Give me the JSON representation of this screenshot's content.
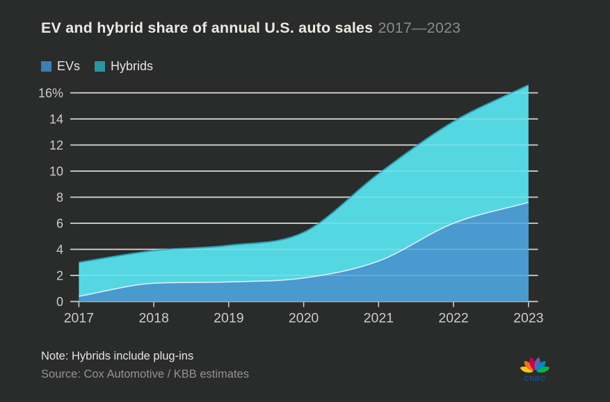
{
  "header": {
    "title": "EV and hybrid share of annual U.S. auto sales",
    "subtitle": "2017—2023"
  },
  "legend": [
    {
      "label": "EVs",
      "color": "#3b7fb4"
    },
    {
      "label": "Hybrids",
      "color": "#2b95a2"
    }
  ],
  "chart_data": {
    "type": "area",
    "stacked": true,
    "title": "EV and hybrid share of annual U.S. auto sales 2017—2023",
    "x": [
      2017,
      2018,
      2019,
      2020,
      2021,
      2022,
      2023
    ],
    "x_tick_labels": [
      "2017",
      "2018",
      "2019",
      "2020",
      "2021",
      "2022",
      "2023"
    ],
    "series": [
      {
        "name": "EVs",
        "values": [
          0.4,
          1.4,
          1.5,
          1.8,
          3.1,
          6.0,
          7.6
        ],
        "fill": "#4a99cf",
        "edge": "#ddeef8"
      },
      {
        "name": "Hybrids",
        "values": [
          2.6,
          2.5,
          2.8,
          3.5,
          6.7,
          7.8,
          9.0
        ],
        "fill": "#55d7e2",
        "edge": "#2d9fb6"
      }
    ],
    "stacked_totals": [
      3.0,
      3.9,
      4.3,
      5.3,
      9.8,
      13.8,
      16.6
    ],
    "xlabel": "",
    "ylabel": "",
    "value_unit": "%",
    "ylim": [
      0,
      16.6
    ],
    "yticks": [
      0,
      2,
      4,
      6,
      8,
      10,
      12,
      14,
      16
    ],
    "ytick_labels": [
      "0",
      "2",
      "4",
      "6",
      "8",
      "10",
      "12",
      "14",
      "16%"
    ],
    "grid": true,
    "legend_position": "top-left"
  },
  "footer": {
    "note": "Note: Hybrids include plug-ins",
    "source": "Source: Cox Automotive / KBB estimates"
  },
  "logo": {
    "name": "cnbc-peacock-logo",
    "wordmark": "CNBC",
    "wordmark_color": "#16508f",
    "feather_colors": [
      "#f5c519",
      "#f37021",
      "#cc004c",
      "#6460aa",
      "#0089d0",
      "#0db14b"
    ]
  },
  "colors": {
    "background": "#292c2b",
    "title": "#ece9e3",
    "subtitle": "#8b8b89",
    "legend_text": "#e7e4de",
    "grid": "#d5d2cc",
    "grid_overlay": "rgba(255,255,255,0.24)",
    "axis_text": "#cfccc6",
    "note_text": "#e6e3dd",
    "source_text": "#96938d"
  }
}
